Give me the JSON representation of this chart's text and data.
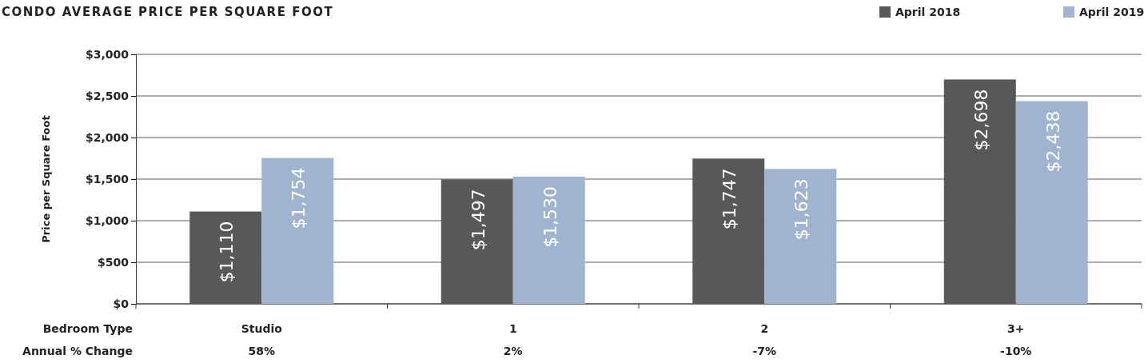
{
  "chart_data": {
    "type": "bar",
    "title": "CONDO AVERAGE PRICE PER SQUARE FOOT",
    "ylabel": "Price per Square Foot",
    "xlabel": "Bedroom Type",
    "categories": [
      "Studio",
      "1",
      "2",
      "3+"
    ],
    "series": [
      {
        "name": "April 2018",
        "color": "#585858",
        "values": [
          1110,
          1497,
          1747,
          2698
        ],
        "value_labels": [
          "$1,110",
          "$1,497",
          "$1,747",
          "$2,698"
        ]
      },
      {
        "name": "April 2019",
        "color": "#a0b4cf",
        "values": [
          1754,
          1530,
          1623,
          2438
        ],
        "value_labels": [
          "$1,754",
          "$1,530",
          "$1,623",
          "$2,438"
        ]
      }
    ],
    "ylim": [
      0,
      3000
    ],
    "yticks": [
      {
        "value": 0,
        "label": "$0"
      },
      {
        "value": 500,
        "label": "$500"
      },
      {
        "value": 1000,
        "label": "$1,000"
      },
      {
        "value": 1500,
        "label": "$1,500"
      },
      {
        "value": 2000,
        "label": "$2,000"
      },
      {
        "value": 2500,
        "label": "$2,500"
      },
      {
        "value": 3000,
        "label": "$3,000"
      }
    ],
    "grid": "y",
    "legend": "top right",
    "annotations": [
      "Annual % Change",
      "58%",
      "2%",
      "-7%",
      "-10%"
    ]
  }
}
